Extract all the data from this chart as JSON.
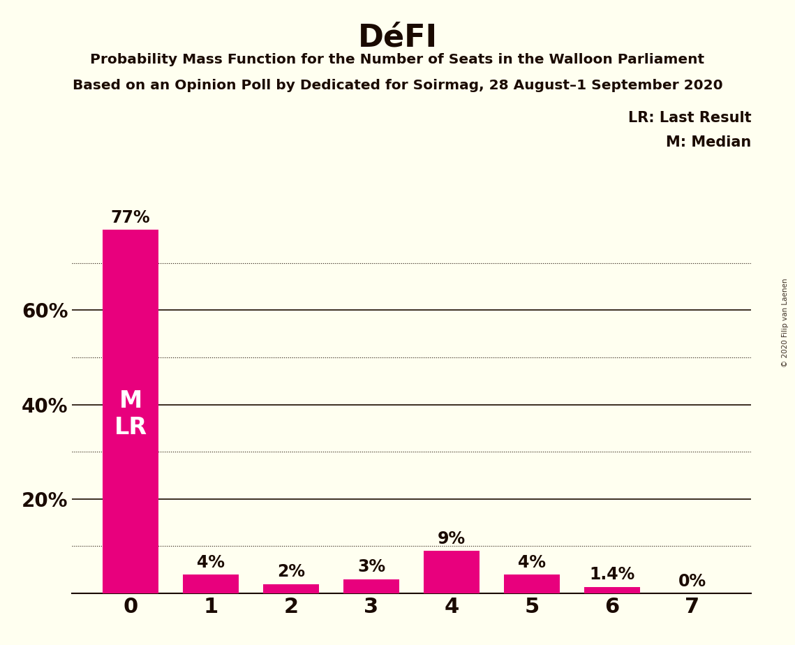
{
  "title": "DéFI",
  "subtitle1": "Probability Mass Function for the Number of Seats in the Walloon Parliament",
  "subtitle2": "Based on an Opinion Poll by Dedicated for Soirmag, 28 August–1 September 2020",
  "categories": [
    0,
    1,
    2,
    3,
    4,
    5,
    6,
    7
  ],
  "values": [
    77,
    4,
    2,
    3,
    9,
    4,
    1.4,
    0
  ],
  "bar_color": "#E8007D",
  "background_color": "#FFFFF0",
  "text_color": "#1A0A00",
  "yticks": [
    20,
    40,
    60
  ],
  "ytick_labels": [
    "20%",
    "40%",
    "60%"
  ],
  "ymax": 82,
  "grid_major_ticks": [
    20,
    40,
    60
  ],
  "grid_minor_ticks": [
    10,
    30,
    50,
    70
  ],
  "legend_lr": "LR: Last Result",
  "legend_m": "M: Median",
  "watermark": "© 2020 Filip van Laenen",
  "bar_labels": [
    "77%",
    "4%",
    "2%",
    "3%",
    "9%",
    "4%",
    "1.4%",
    "0%"
  ],
  "ml_label": "M\nLR"
}
